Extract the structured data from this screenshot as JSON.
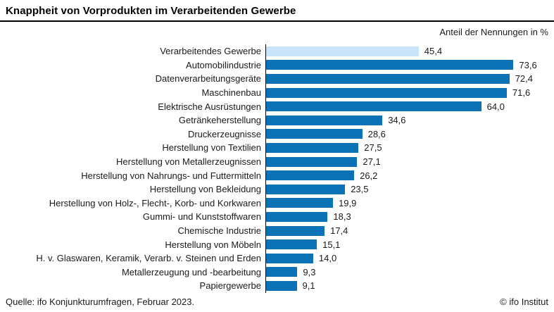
{
  "header": {
    "title": "Knappheit von Vorprodukten im Verarbeitenden Gewerbe"
  },
  "chart": {
    "unit_label": "Anteil der Nennungen in %"
  },
  "chart_data": {
    "type": "bar",
    "orientation": "horizontal",
    "title": "Knappheit von Vorprodukten im Verarbeitenden Gewerbe",
    "unit_label": "Anteil der Nennungen in %",
    "categories": [
      "Verarbeitendes Gewerbe",
      "Automobilindustrie",
      "Datenverarbeitungsgeräte",
      "Maschinenbau",
      "Elektrische Ausrüstungen",
      "Getränkeherstellung",
      "Druckerzeugnisse",
      "Herstellung von Textilien",
      "Herstellung von Metallerzeugnissen",
      "Herstellung von Nahrungs- und Futtermitteln",
      "Herstellung von Bekleidung",
      "Herstellung von Holz-, Flecht-, Korb- und Korkwaren",
      "Gummi- und Kunststoffwaren",
      "Chemische Industrie",
      "Herstellung von Möbeln",
      "H. v. Glaswaren, Keramik, Verarb. v. Steinen und Erden",
      "Metallerzeugung und -bearbeitung",
      "Papiergewerbe"
    ],
    "values": [
      45.4,
      73.6,
      72.4,
      71.6,
      64.0,
      34.6,
      28.6,
      27.5,
      27.1,
      26.2,
      23.5,
      19.9,
      18.3,
      17.4,
      15.1,
      14.0,
      9.3,
      9.1
    ],
    "value_labels": [
      "45,4",
      "73,6",
      "72,4",
      "71,6",
      "64,0",
      "34,6",
      "28,6",
      "27,5",
      "27,1",
      "26,2",
      "23,5",
      "19,9",
      "18,3",
      "17,4",
      "15,1",
      "14,0",
      "9,3",
      "9,1"
    ],
    "highlight_index": 0,
    "bar_color": "#0b72b5",
    "highlight_color": "#c8e4f8",
    "axis_line_color": "#000000",
    "xlim": [
      0,
      80
    ],
    "grid": false,
    "legend": "none"
  },
  "footer": {
    "source": "Quelle: ifo Konjunkturumfragen, Februar 2023.",
    "copyright": "© ifo Institut"
  }
}
